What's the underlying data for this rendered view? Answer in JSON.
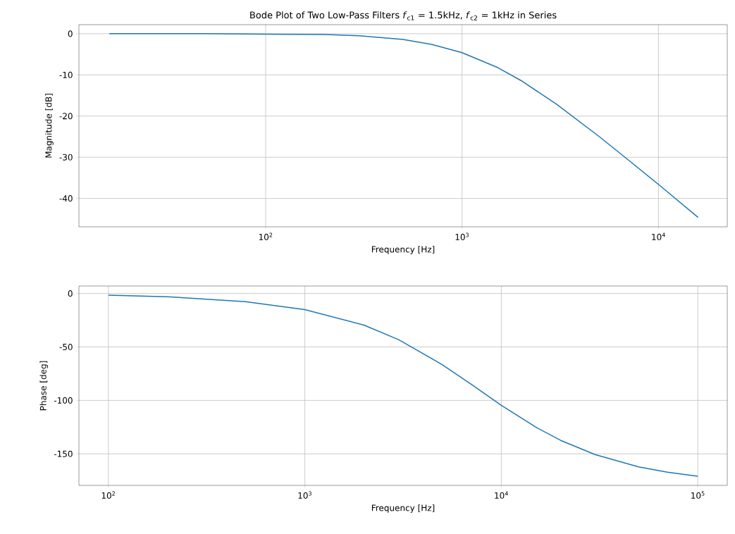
{
  "chart_data": [
    {
      "type": "line",
      "title": "Bode Plot of Two Low-Pass Filters *f*$_{c1}$ = 1.5kHz, *f*$_{c2}$ = 1kHz in Series",
      "xlabel": "Frequency [Hz]",
      "ylabel": "Magnitude [dB]",
      "log": "x",
      "grid": true,
      "x": [
        16,
        30,
        50,
        100,
        200,
        300,
        500,
        700,
        1000,
        1500,
        2000,
        3000,
        5000,
        7000,
        10000,
        15915
      ],
      "series": [
        {
          "color": "#1f77b4",
          "values": [
            0.0,
            0.0,
            0.0,
            -0.1,
            -0.2,
            -0.5,
            -1.4,
            -2.6,
            -4.6,
            -8.1,
            -11.4,
            -17.0,
            -25.0,
            -30.6,
            -36.6,
            -44.6
          ]
        }
      ],
      "xlim": [
        11.2,
        22400
      ],
      "ylim": [
        -46.9,
        2.2
      ],
      "xticks": [
        {
          "value": 100,
          "label": "10$^{2}$"
        },
        {
          "value": 1000,
          "label": "10$^{3}$"
        },
        {
          "value": 10000,
          "label": "10$^{4}$"
        }
      ],
      "yticks": [
        0,
        -10,
        -20,
        -30,
        -40
      ]
    },
    {
      "type": "line",
      "xlabel": "Frequency [Hz]",
      "ylabel": "Phase [deg]",
      "log": "x",
      "grid": true,
      "x": [
        100,
        200,
        500,
        1000,
        2000,
        3000,
        5000,
        7000,
        10000,
        15000,
        20000,
        30000,
        50000,
        70000,
        100000
      ],
      "series": [
        {
          "color": "#1f77b4",
          "values": [
            -1.5,
            -3.0,
            -7.6,
            -15.1,
            -29.6,
            -43.2,
            -66.5,
            -84.7,
            -104.6,
            -125.1,
            -137.3,
            -150.7,
            -162.2,
            -167.2,
            -171.0
          ]
        }
      ],
      "xlim": [
        70.8,
        141254
      ],
      "ylim": [
        -179.5,
        7.0
      ],
      "xticks": [
        {
          "value": 100,
          "label": "10$^{2}$"
        },
        {
          "value": 1000,
          "label": "10$^{3}$"
        },
        {
          "value": 10000,
          "label": "10$^{4}$"
        },
        {
          "value": 100000,
          "label": "10$^{5}$"
        }
      ],
      "yticks": [
        0,
        -50,
        -100,
        -150
      ]
    }
  ]
}
